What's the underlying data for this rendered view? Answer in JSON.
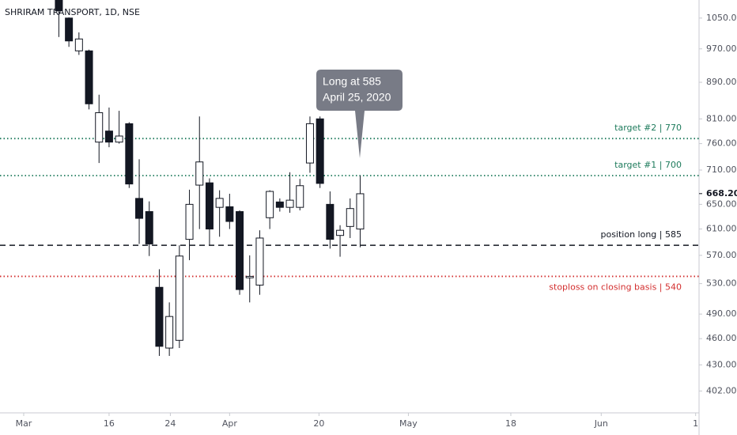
{
  "chart_data": {
    "type": "candlestick",
    "title": "SHRIRAM TRANSPORT, 1D, NSE",
    "log_scale": true,
    "ylim": [
      380,
      1100
    ],
    "yticks": [
      {
        "value": 402,
        "label": "402.00"
      },
      {
        "value": 430,
        "label": "430.00"
      },
      {
        "value": 460,
        "label": "460.00"
      },
      {
        "value": 490,
        "label": "490.00"
      },
      {
        "value": 530,
        "label": "530.00"
      },
      {
        "value": 570,
        "label": "570.00"
      },
      {
        "value": 610,
        "label": "610.00"
      },
      {
        "value": 650,
        "label": "650.00"
      },
      {
        "value": 710,
        "label": "710.00"
      },
      {
        "value": 760,
        "label": "760.00"
      },
      {
        "value": 810,
        "label": "810.00"
      },
      {
        "value": 890,
        "label": "890.00"
      },
      {
        "value": 970,
        "label": "970.00"
      },
      {
        "value": 1050,
        "label": "1050.00"
      }
    ],
    "last_price": {
      "value": 668.2,
      "label": "668.20"
    },
    "xlim": [
      -2.36,
      67.24
    ],
    "xticks": [
      {
        "value": 0,
        "label": "Mar"
      },
      {
        "value": 8.5,
        "label": "16"
      },
      {
        "value": 14.6,
        "label": "24"
      },
      {
        "value": 20.5,
        "label": "Apr"
      },
      {
        "value": 29.4,
        "label": "20"
      },
      {
        "value": 38.3,
        "label": "May"
      },
      {
        "value": 48.5,
        "label": "18"
      },
      {
        "value": 57.5,
        "label": "Jun"
      },
      {
        "value": 66.9,
        "label": "1"
      }
    ],
    "up_color": "#ffffff",
    "down_color": "#131722",
    "border_color": "#131722",
    "x": [
      3.5,
      4.5,
      5.5,
      6.5,
      7.5,
      8.5,
      9.5,
      10.5,
      11.5,
      12.5,
      13.5,
      14.5,
      15.5,
      16.5,
      17.5,
      18.5,
      19.5,
      20.5,
      21.5,
      22.5,
      23.5,
      24.5,
      25.5,
      26.5,
      27.5,
      28.5,
      29.5,
      30.5,
      31.5,
      32.5,
      33.5
    ],
    "open": [
      1120,
      1050,
      965,
      965,
      763,
      785,
      763,
      800,
      660,
      638,
      525,
      449,
      458,
      594,
      683,
      687,
      645,
      646,
      638,
      538,
      528,
      628,
      654,
      645,
      645,
      723,
      810,
      650,
      600,
      614,
      610
    ],
    "high": [
      1140,
      1052,
      1012,
      968,
      862,
      834,
      827,
      803,
      730,
      655,
      550,
      505,
      585,
      675,
      815,
      695,
      674,
      668,
      640,
      570,
      608,
      674,
      660,
      706,
      694,
      815,
      815,
      672,
      616,
      660,
      700
    ],
    "low": [
      1000,
      975,
      955,
      830,
      723,
      753,
      760,
      678,
      587,
      569,
      440,
      440,
      449,
      563,
      610,
      585,
      598,
      610,
      515,
      505,
      515,
      610,
      638,
      636,
      640,
      705,
      678,
      580,
      568,
      596,
      582
    ],
    "close": [
      1070,
      990,
      995,
      842,
      823,
      763,
      775,
      685,
      627,
      587,
      451,
      487,
      569,
      650,
      725,
      610,
      660,
      622,
      522,
      540,
      596,
      672,
      645,
      657,
      682,
      800,
      686,
      594,
      608,
      643,
      668
    ],
    "levels": [
      {
        "label": "target #2 | 770",
        "value": 770,
        "color": "#1e7b5c",
        "style": "dotted",
        "label_position": "above"
      },
      {
        "label": "target #1 | 700",
        "value": 700,
        "color": "#1e7b5c",
        "style": "dotted",
        "label_position": "above"
      },
      {
        "label": "position long | 585",
        "value": 585,
        "color": "#131722",
        "style": "dashed",
        "label_position": "above"
      },
      {
        "label": "stoploss on closing basis | 540",
        "value": 540,
        "color": "#d32f2f",
        "style": "dotted",
        "label_position": "below"
      }
    ],
    "annotation": [
      "Long at 585",
      "April 25, 2020"
    ]
  }
}
